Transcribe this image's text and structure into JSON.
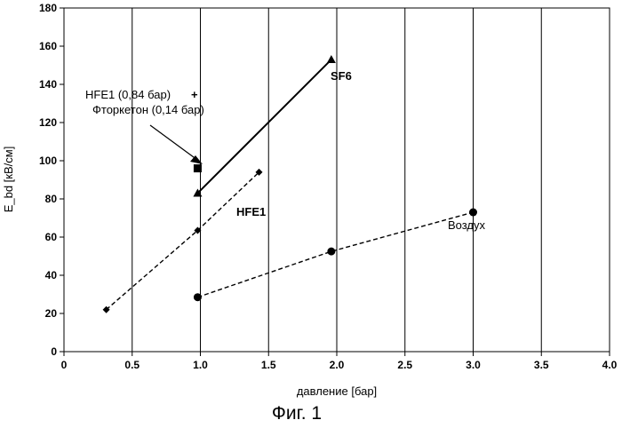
{
  "chart_data": {
    "type": "line",
    "xlabel": "давление [бар]",
    "ylabel": "E_bd [кВ/см]",
    "xlim": [
      0,
      4.0
    ],
    "ylim": [
      0,
      180
    ],
    "xticks": [
      "0",
      "0.5",
      "1.0",
      "1.5",
      "2.0",
      "2.5",
      "3.0",
      "3.5",
      "4.0"
    ],
    "yticks": [
      "0",
      "20",
      "40",
      "60",
      "80",
      "100",
      "120",
      "140",
      "160",
      "180"
    ],
    "grid": "vertical",
    "series": [
      {
        "name": "SF6",
        "marker": "triangle",
        "line": "solid",
        "x": [
          0.98,
          1.96
        ],
        "y": [
          83,
          153
        ]
      },
      {
        "name": "HFE1",
        "marker": "diamond",
        "line": "dashed",
        "x": [
          0.31,
          0.98,
          1.43
        ],
        "y": [
          22,
          63.5,
          94
        ]
      },
      {
        "name": "Воздух",
        "marker": "circle",
        "line": "dashed",
        "x": [
          0.98,
          1.96,
          3.0
        ],
        "y": [
          28.5,
          52.5,
          73
        ]
      },
      {
        "name": "",
        "marker": "square",
        "line": "none",
        "x": [
          0.98
        ],
        "y": [
          96
        ]
      }
    ],
    "annotations": {
      "mix_line1": "HFE1 (0,84 бар)",
      "mix_plus": "+",
      "mix_line2": "Фторкетон (0,14 бар)"
    }
  },
  "caption": "Фиг. 1"
}
